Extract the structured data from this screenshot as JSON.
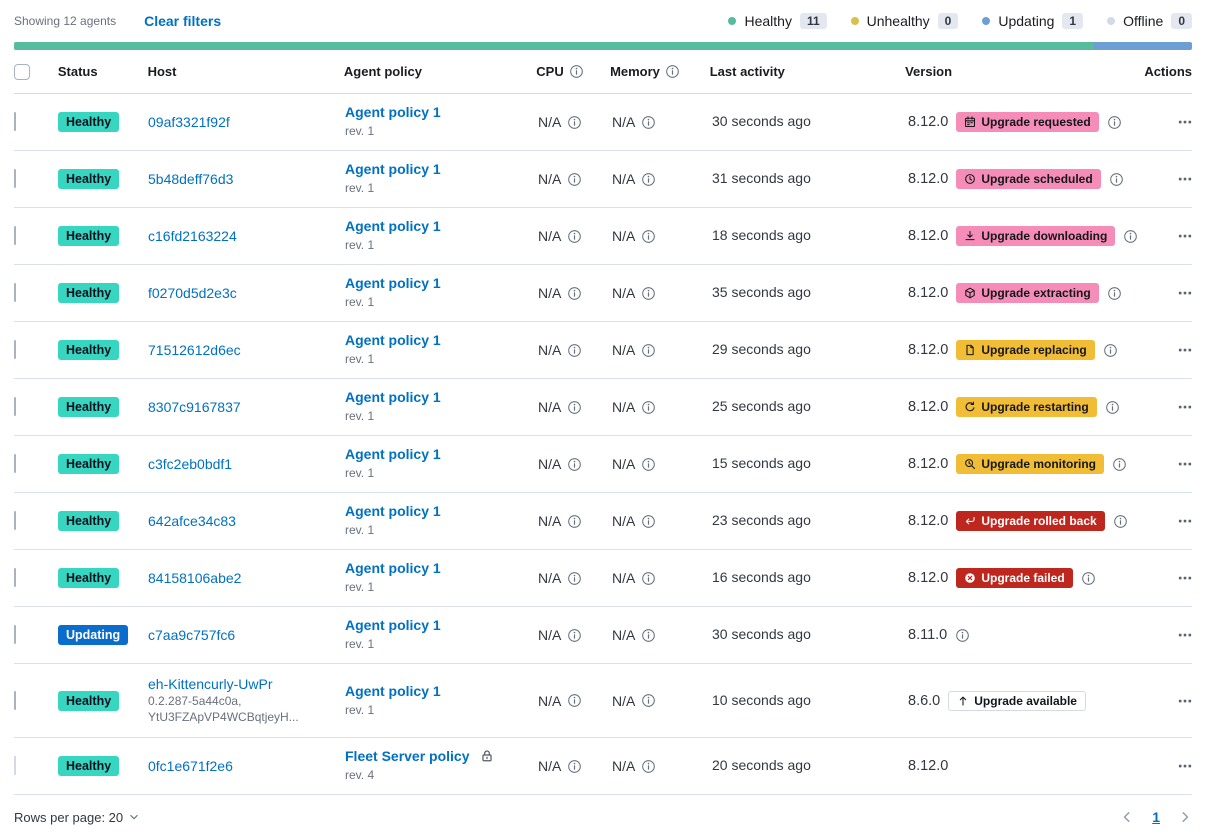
{
  "colors": {
    "link_blue": "#0071c2",
    "healthy_badge_teal": "#36d6c1",
    "updating_badge_blue": "#0a6ccb",
    "accent_pink": "#f58db8",
    "warning_yellow": "#f2bd36",
    "danger_red": "#bd271e",
    "bar_green": "#57bb9d",
    "bar_blue": "#6d9fd4",
    "offline_gray": "#d3dae6",
    "unhealthy_yellow": "#d9c04d"
  },
  "toolbar": {
    "showing": "Showing 12 agents",
    "clear_filters": "Clear filters",
    "legend": [
      {
        "id": "healthy",
        "label": "Healthy",
        "count": "11",
        "dot": "#57bb9d"
      },
      {
        "id": "unhealthy",
        "label": "Unhealthy",
        "count": "0",
        "dot": "#d9c04d"
      },
      {
        "id": "updating",
        "label": "Updating",
        "count": "1",
        "dot": "#6d9fd4"
      },
      {
        "id": "offline",
        "label": "Offline",
        "count": "0",
        "dot": "#d3dae6"
      }
    ]
  },
  "health_bar": {
    "segments": [
      {
        "status": "healthy",
        "color": "#57bb9d",
        "fraction": 0.9167
      },
      {
        "status": "updating",
        "color": "#6d9fd4",
        "fraction": 0.0833
      }
    ]
  },
  "table": {
    "headers": {
      "status": "Status",
      "host": "Host",
      "policy": "Agent policy",
      "cpu": "CPU",
      "memory": "Memory",
      "activity": "Last activity",
      "version": "Version",
      "actions": "Actions"
    },
    "rows": [
      {
        "status": {
          "label": "Healthy",
          "bg": "#36d6c1",
          "fg": "#07101f"
        },
        "host": {
          "name": "09af3321f92f",
          "sub_lines": []
        },
        "policy": {
          "name": "Agent policy 1",
          "revision": "rev. 1",
          "locked": false
        },
        "cpu": "N/A",
        "memory": "N/A",
        "last_activity": "30 seconds ago",
        "version": "8.12.0",
        "version_info": false,
        "upgrade": {
          "label": "Upgrade requested",
          "icon": "calendar-icon",
          "bg": "#f58db8",
          "fg": "#14161a",
          "style": "filled"
        },
        "upgrade_info": true,
        "checkbox_disabled": false
      },
      {
        "status": {
          "label": "Healthy",
          "bg": "#36d6c1",
          "fg": "#07101f"
        },
        "host": {
          "name": "5b48deff76d3",
          "sub_lines": []
        },
        "policy": {
          "name": "Agent policy 1",
          "revision": "rev. 1",
          "locked": false
        },
        "cpu": "N/A",
        "memory": "N/A",
        "last_activity": "31 seconds ago",
        "version": "8.12.0",
        "version_info": false,
        "upgrade": {
          "label": "Upgrade scheduled",
          "icon": "clock-icon",
          "bg": "#f58db8",
          "fg": "#14161a",
          "style": "filled"
        },
        "upgrade_info": true,
        "checkbox_disabled": false
      },
      {
        "status": {
          "label": "Healthy",
          "bg": "#36d6c1",
          "fg": "#07101f"
        },
        "host": {
          "name": "c16fd2163224",
          "sub_lines": []
        },
        "policy": {
          "name": "Agent policy 1",
          "revision": "rev. 1",
          "locked": false
        },
        "cpu": "N/A",
        "memory": "N/A",
        "last_activity": "18 seconds ago",
        "version": "8.12.0",
        "version_info": false,
        "upgrade": {
          "label": "Upgrade downloading",
          "icon": "download-icon",
          "bg": "#f58db8",
          "fg": "#14161a",
          "style": "filled"
        },
        "upgrade_info": true,
        "checkbox_disabled": false
      },
      {
        "status": {
          "label": "Healthy",
          "bg": "#36d6c1",
          "fg": "#07101f"
        },
        "host": {
          "name": "f0270d5d2e3c",
          "sub_lines": []
        },
        "policy": {
          "name": "Agent policy 1",
          "revision": "rev. 1",
          "locked": false
        },
        "cpu": "N/A",
        "memory": "N/A",
        "last_activity": "35 seconds ago",
        "version": "8.12.0",
        "version_info": false,
        "upgrade": {
          "label": "Upgrade extracting",
          "icon": "package-icon",
          "bg": "#f58db8",
          "fg": "#14161a",
          "style": "filled"
        },
        "upgrade_info": true,
        "checkbox_disabled": false
      },
      {
        "status": {
          "label": "Healthy",
          "bg": "#36d6c1",
          "fg": "#07101f"
        },
        "host": {
          "name": "71512612d6ec",
          "sub_lines": []
        },
        "policy": {
          "name": "Agent policy 1",
          "revision": "rev. 1",
          "locked": false
        },
        "cpu": "N/A",
        "memory": "N/A",
        "last_activity": "29 seconds ago",
        "version": "8.12.0",
        "version_info": false,
        "upgrade": {
          "label": "Upgrade replacing",
          "icon": "document-icon",
          "bg": "#f2bd36",
          "fg": "#14161a",
          "style": "filled"
        },
        "upgrade_info": true,
        "checkbox_disabled": false
      },
      {
        "status": {
          "label": "Healthy",
          "bg": "#36d6c1",
          "fg": "#07101f"
        },
        "host": {
          "name": "8307c9167837",
          "sub_lines": []
        },
        "policy": {
          "name": "Agent policy 1",
          "revision": "rev. 1",
          "locked": false
        },
        "cpu": "N/A",
        "memory": "N/A",
        "last_activity": "25 seconds ago",
        "version": "8.12.0",
        "version_info": false,
        "upgrade": {
          "label": "Upgrade restarting",
          "icon": "refresh-icon",
          "bg": "#f2bd36",
          "fg": "#14161a",
          "style": "filled"
        },
        "upgrade_info": true,
        "checkbox_disabled": false
      },
      {
        "status": {
          "label": "Healthy",
          "bg": "#36d6c1",
          "fg": "#07101f"
        },
        "host": {
          "name": "c3fc2eb0bdf1",
          "sub_lines": []
        },
        "policy": {
          "name": "Agent policy 1",
          "revision": "rev. 1",
          "locked": false
        },
        "cpu": "N/A",
        "memory": "N/A",
        "last_activity": "15 seconds ago",
        "version": "8.12.0",
        "version_info": false,
        "upgrade": {
          "label": "Upgrade monitoring",
          "icon": "inspect-icon",
          "bg": "#f2bd36",
          "fg": "#14161a",
          "style": "filled"
        },
        "upgrade_info": true,
        "checkbox_disabled": false
      },
      {
        "status": {
          "label": "Healthy",
          "bg": "#36d6c1",
          "fg": "#07101f"
        },
        "host": {
          "name": "642afce34c83",
          "sub_lines": []
        },
        "policy": {
          "name": "Agent policy 1",
          "revision": "rev. 1",
          "locked": false
        },
        "cpu": "N/A",
        "memory": "N/A",
        "last_activity": "23 seconds ago",
        "version": "8.12.0",
        "version_info": false,
        "upgrade": {
          "label": "Upgrade rolled back",
          "icon": "return-arrow-icon",
          "bg": "#bd271e",
          "fg": "#ffffff",
          "style": "filled"
        },
        "upgrade_info": true,
        "checkbox_disabled": false
      },
      {
        "status": {
          "label": "Healthy",
          "bg": "#36d6c1",
          "fg": "#07101f"
        },
        "host": {
          "name": "84158106abe2",
          "sub_lines": []
        },
        "policy": {
          "name": "Agent policy 1",
          "revision": "rev. 1",
          "locked": false
        },
        "cpu": "N/A",
        "memory": "N/A",
        "last_activity": "16 seconds ago",
        "version": "8.12.0",
        "version_info": false,
        "upgrade": {
          "label": "Upgrade failed",
          "icon": "error-icon",
          "bg": "#bd271e",
          "fg": "#ffffff",
          "style": "filled"
        },
        "upgrade_info": true,
        "checkbox_disabled": false
      },
      {
        "status": {
          "label": "Updating",
          "bg": "#0a6ccb",
          "fg": "#ffffff"
        },
        "host": {
          "name": "c7aa9c757fc6",
          "sub_lines": []
        },
        "policy": {
          "name": "Agent policy 1",
          "revision": "rev. 1",
          "locked": false
        },
        "cpu": "N/A",
        "memory": "N/A",
        "last_activity": "30 seconds ago",
        "version": "8.11.0",
        "version_info": true,
        "upgrade": null,
        "upgrade_info": false,
        "checkbox_disabled": false
      },
      {
        "status": {
          "label": "Healthy",
          "bg": "#36d6c1",
          "fg": "#07101f"
        },
        "host": {
          "name": "eh-Kittencurly-UwPr",
          "sub_lines": [
            "0.2.287-5a44c0a,",
            "YtU3FZApVP4WCBqtjeyH..."
          ]
        },
        "policy": {
          "name": "Agent policy 1",
          "revision": "rev. 1",
          "locked": false
        },
        "cpu": "N/A",
        "memory": "N/A",
        "last_activity": "10 seconds ago",
        "version": "8.6.0",
        "version_info": false,
        "upgrade": {
          "label": "Upgrade available",
          "icon": "arrow-up-icon",
          "bg": "#ffffff",
          "fg": "#14161a",
          "style": "hollow"
        },
        "upgrade_info": false,
        "checkbox_disabled": false
      },
      {
        "status": {
          "label": "Healthy",
          "bg": "#36d6c1",
          "fg": "#07101f"
        },
        "host": {
          "name": "0fc1e671f2e6",
          "sub_lines": []
        },
        "policy": {
          "name": "Fleet Server policy",
          "revision": "rev. 4",
          "locked": true
        },
        "cpu": "N/A",
        "memory": "N/A",
        "last_activity": "20 seconds ago",
        "version": "8.12.0",
        "version_info": false,
        "upgrade": null,
        "upgrade_info": false,
        "checkbox_disabled": true
      }
    ]
  },
  "footer": {
    "rows_per_page": "Rows per page: 20",
    "page": "1"
  }
}
